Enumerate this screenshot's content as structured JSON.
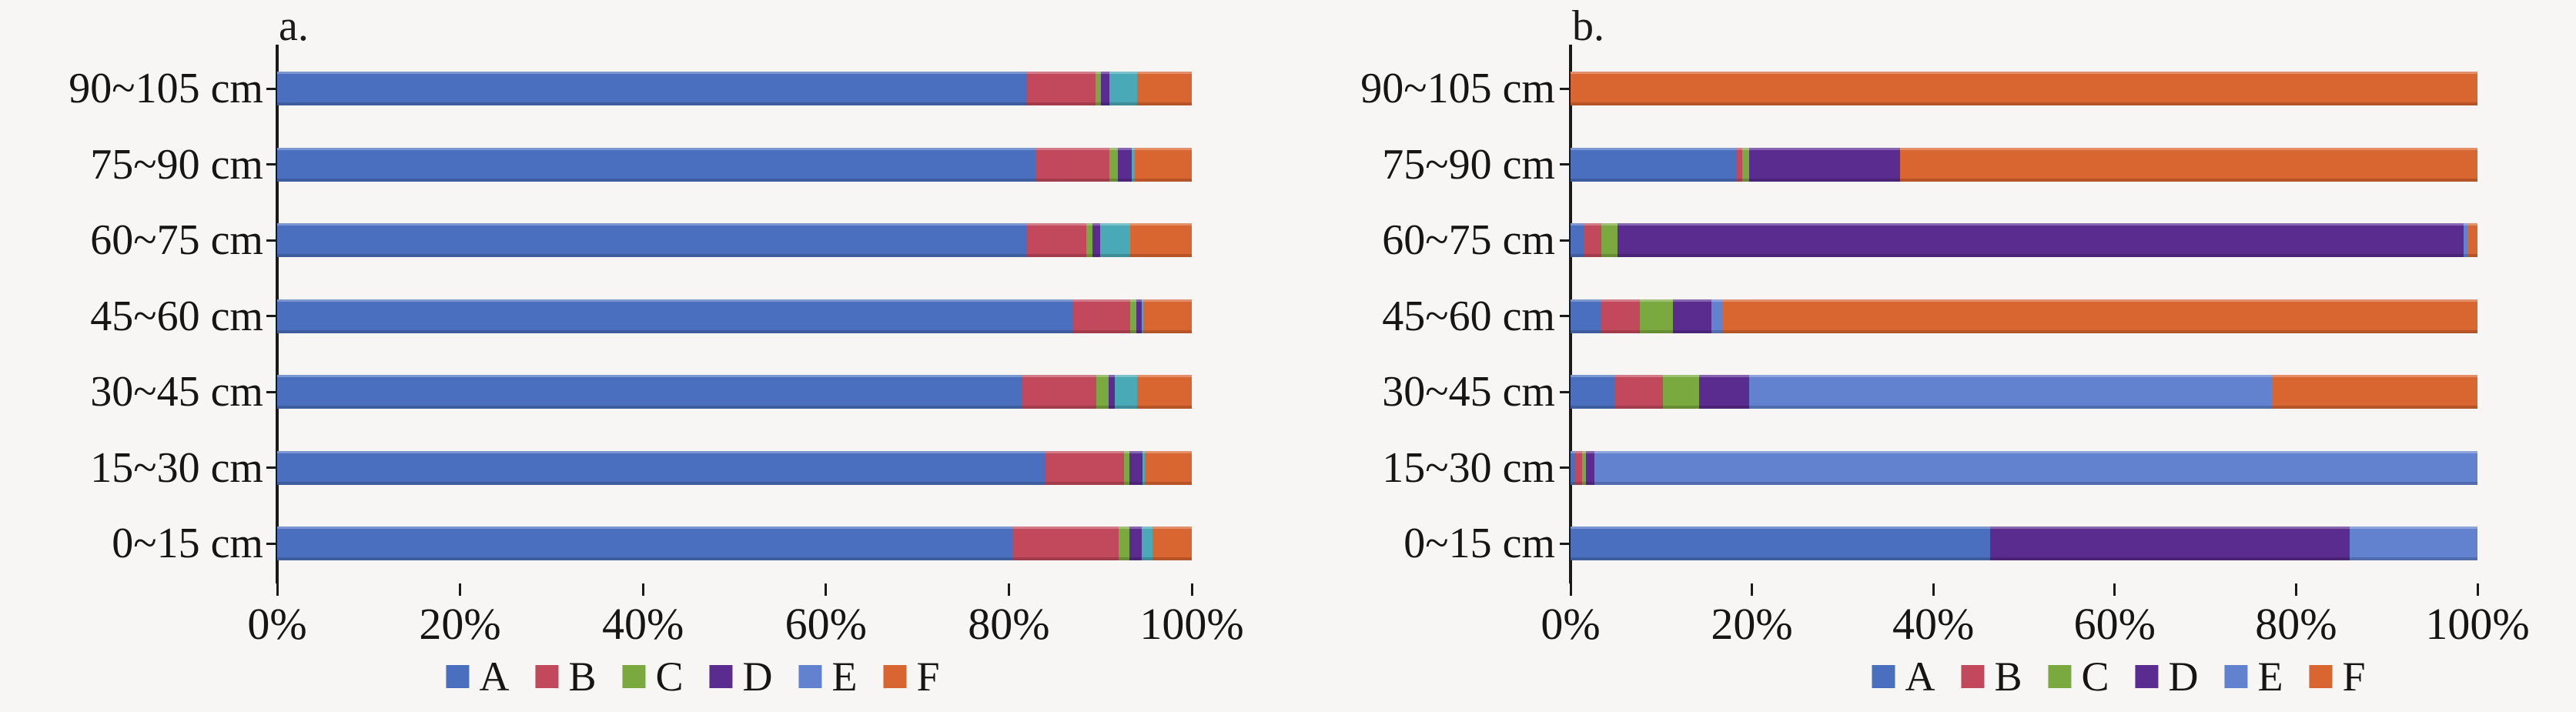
{
  "page": {
    "background_color": "#f7f6f4",
    "axis_color": "#1a1a1a"
  },
  "palette": {
    "A": "#4a6fbe",
    "B": "#c2485c",
    "C": "#7aa93f",
    "D": "#5a2c90",
    "E": "#6282cf",
    "F": "#d96530"
  },
  "chart_data": [
    {
      "type": "bar",
      "orientation": "horizontal",
      "stacked": true,
      "units": "percent",
      "title": "a.",
      "xlim": [
        0,
        100
      ],
      "grid": false,
      "legend_position": "bottom",
      "x_tick_labels": [
        "0%",
        "20%",
        "40%",
        "60%",
        "80%",
        "100%"
      ],
      "categories": [
        "90~105 cm",
        "75~90 cm",
        "60~75 cm",
        "45~60 cm",
        "30~45 cm",
        "15~30 cm",
        "0~15 cm"
      ],
      "series": [
        {
          "name": "A",
          "values": [
            82,
            83,
            82,
            87,
            81.5,
            84,
            80.5
          ]
        },
        {
          "name": "B",
          "values": [
            7.5,
            8,
            6.5,
            6.3,
            8.1,
            8.6,
            11.5
          ]
        },
        {
          "name": "C",
          "values": [
            0.6,
            0.9,
            0.6,
            0.6,
            1.3,
            0.6,
            1.2
          ]
        },
        {
          "name": "D",
          "values": [
            0.9,
            1.5,
            0.9,
            0.6,
            0.7,
            1.4,
            1.3
          ]
        },
        {
          "name": "E",
          "values": [
            3,
            0.4,
            3.3,
            0.2,
            2.4,
            0.3,
            1.2
          ]
        },
        {
          "name": "F",
          "values": [
            6,
            6.2,
            6.7,
            5.3,
            6,
            5.1,
            4.3
          ]
        }
      ],
      "series_color_overrides": {
        "E": "#49a9b6"
      },
      "legend_labels": [
        "A",
        "B",
        "C",
        "D",
        "E",
        "F"
      ]
    },
    {
      "type": "bar",
      "orientation": "horizontal",
      "stacked": true,
      "units": "percent",
      "title": "b.",
      "xlim": [
        0,
        100
      ],
      "grid": false,
      "legend_position": "bottom",
      "x_tick_labels": [
        "0%",
        "20%",
        "40%",
        "60%",
        "80%",
        "100%"
      ],
      "categories": [
        "90~105 cm",
        "75~90 cm",
        "60~75 cm",
        "45~60 cm",
        "30~45 cm",
        "15~30 cm",
        "0~15 cm"
      ],
      "series": [
        {
          "name": "A",
          "values": [
            0,
            18.3,
            1.5,
            3.4,
            4.8,
            0.5,
            46.3
          ]
        },
        {
          "name": "B",
          "values": [
            0,
            0.6,
            1.9,
            4.2,
            5.4,
            0.8,
            0
          ]
        },
        {
          "name": "C",
          "values": [
            0,
            0.8,
            1.8,
            3.7,
            4.0,
            0.4,
            0
          ]
        },
        {
          "name": "D",
          "values": [
            0,
            16.6,
            93.3,
            4.2,
            5.5,
            0.9,
            39.6
          ]
        },
        {
          "name": "E",
          "values": [
            0,
            0,
            0.5,
            1.2,
            57.6,
            97.4,
            14.1
          ]
        },
        {
          "name": "F",
          "values": [
            100,
            63.7,
            1.0,
            83.3,
            22.7,
            0,
            0
          ]
        }
      ],
      "series_color_overrides": {},
      "legend_labels": [
        "A",
        "B",
        "C",
        "D",
        "E",
        "F"
      ]
    }
  ]
}
